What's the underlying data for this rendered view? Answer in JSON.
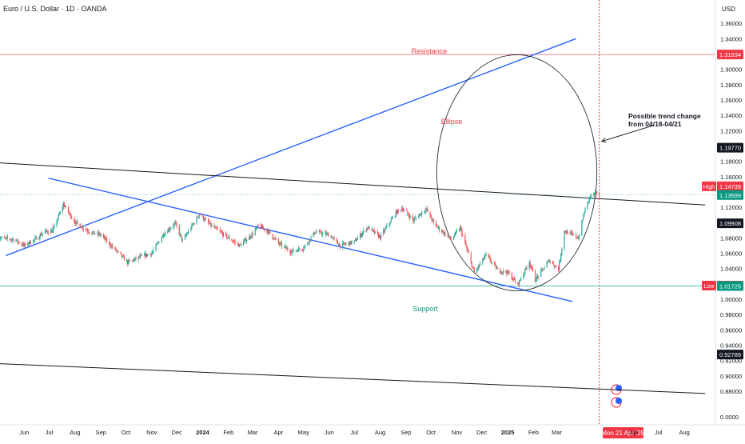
{
  "header": {
    "title": "Euro / U.S. Dollar · 1D · OANDA",
    "currency": "USD"
  },
  "chart_data": {
    "type": "candlestick",
    "symbol": "EURUSD",
    "exchange": "OANDA",
    "interval": "1D",
    "ylim": [
      0.87,
      1.38
    ],
    "grid": false,
    "price_ticks": [
      "1.36000",
      "1.34000",
      "1.32000",
      "1.30000",
      "1.28000",
      "1.26000",
      "1.24000",
      "1.22000",
      "1.20000",
      "1.18000",
      "1.16000",
      "1.14000",
      "1.12000",
      "1.10000",
      "1.08000",
      "1.06000",
      "1.04000",
      "1.02000",
      "1.00000",
      "0.98000",
      "0.96000",
      "0.94000",
      "0.92000",
      "0.90000",
      "0.88000",
      "0.0000"
    ],
    "time_ticks": [
      {
        "label": "Jun",
        "date": "2023-06-01",
        "bold": false
      },
      {
        "label": "Jul",
        "date": "2023-07-01",
        "bold": false
      },
      {
        "label": "Aug",
        "date": "2023-08-01",
        "bold": false
      },
      {
        "label": "Sep",
        "date": "2023-09-01",
        "bold": false
      },
      {
        "label": "Oct",
        "date": "2023-10-01",
        "bold": false
      },
      {
        "label": "Nov",
        "date": "2023-11-01",
        "bold": false
      },
      {
        "label": "Dec",
        "date": "2023-12-01",
        "bold": false
      },
      {
        "label": "2024",
        "date": "2024-01-01",
        "bold": true
      },
      {
        "label": "Feb",
        "date": "2024-02-01",
        "bold": false
      },
      {
        "label": "Mar",
        "date": "2024-03-01",
        "bold": false
      },
      {
        "label": "Apr",
        "date": "2024-04-01",
        "bold": false
      },
      {
        "label": "May",
        "date": "2024-05-01",
        "bold": false
      },
      {
        "label": "Jun",
        "date": "2024-06-01",
        "bold": false
      },
      {
        "label": "Jul",
        "date": "2024-07-01",
        "bold": false
      },
      {
        "label": "Aug",
        "date": "2024-08-01",
        "bold": false
      },
      {
        "label": "Sep",
        "date": "2024-09-01",
        "bold": false
      },
      {
        "label": "Oct",
        "date": "2024-10-01",
        "bold": false
      },
      {
        "label": "Nov",
        "date": "2024-11-01",
        "bold": false
      },
      {
        "label": "Dec",
        "date": "2024-12-01",
        "bold": false
      },
      {
        "label": "2025",
        "date": "2025-01-01",
        "bold": true
      },
      {
        "label": "Feb",
        "date": "2025-02-01",
        "bold": false
      },
      {
        "label": "Mar",
        "date": "2025-03-01",
        "bold": false
      },
      {
        "label": "Jun",
        "date": "2025-06-01",
        "bold": false
      },
      {
        "label": "Jul",
        "date": "2025-07-01",
        "bold": false
      },
      {
        "label": "Aug",
        "date": "2025-08-01",
        "bold": false
      }
    ],
    "price_path": [
      [
        "2023-05-01",
        1.08
      ],
      [
        "2023-05-20",
        1.078
      ],
      [
        "2023-06-01",
        1.07
      ],
      [
        "2023-06-15",
        1.079
      ],
      [
        "2023-06-25",
        1.088
      ],
      [
        "2023-07-05",
        1.089
      ],
      [
        "2023-07-18",
        1.124
      ],
      [
        "2023-08-01",
        1.1
      ],
      [
        "2023-08-20",
        1.087
      ],
      [
        "2023-09-01",
        1.084
      ],
      [
        "2023-09-15",
        1.068
      ],
      [
        "2023-10-03",
        1.048
      ],
      [
        "2023-10-20",
        1.056
      ],
      [
        "2023-11-01",
        1.06
      ],
      [
        "2023-11-15",
        1.085
      ],
      [
        "2023-11-29",
        1.099
      ],
      [
        "2023-12-08",
        1.076
      ],
      [
        "2023-12-28",
        1.111
      ],
      [
        "2024-01-10",
        1.097
      ],
      [
        "2024-02-01",
        1.08
      ],
      [
        "2024-02-14",
        1.07
      ],
      [
        "2024-03-01",
        1.085
      ],
      [
        "2024-03-08",
        1.096
      ],
      [
        "2024-03-20",
        1.088
      ],
      [
        "2024-04-01",
        1.073
      ],
      [
        "2024-04-16",
        1.062
      ],
      [
        "2024-05-01",
        1.067
      ],
      [
        "2024-05-15",
        1.088
      ],
      [
        "2024-06-01",
        1.084
      ],
      [
        "2024-06-14",
        1.07
      ],
      [
        "2024-07-01",
        1.075
      ],
      [
        "2024-07-17",
        1.094
      ],
      [
        "2024-08-01",
        1.081
      ],
      [
        "2024-08-20",
        1.113
      ],
      [
        "2024-08-27",
        1.119
      ],
      [
        "2024-09-10",
        1.103
      ],
      [
        "2024-09-25",
        1.118
      ],
      [
        "2024-10-05",
        1.098
      ],
      [
        "2024-10-25",
        1.078
      ],
      [
        "2024-11-05",
        1.093
      ],
      [
        "2024-11-22",
        1.034
      ],
      [
        "2024-12-06",
        1.058
      ],
      [
        "2024-12-20",
        1.038
      ],
      [
        "2025-01-01",
        1.035
      ],
      [
        "2025-01-13",
        1.019
      ],
      [
        "2025-01-27",
        1.049
      ],
      [
        "2025-02-03",
        1.025
      ],
      [
        "2025-02-20",
        1.051
      ],
      [
        "2025-03-03",
        1.039
      ],
      [
        "2025-03-10",
        1.089
      ],
      [
        "2025-03-27",
        1.08
      ],
      [
        "2025-04-03",
        1.114
      ],
      [
        "2025-04-10",
        1.135
      ],
      [
        "2025-04-18",
        1.139
      ],
      [
        "2025-04-21",
        1.1474
      ]
    ],
    "last_price": 1.13599,
    "session_high": 1.14739,
    "session_low": 1.01779,
    "price_labels": [
      {
        "id": "resistance",
        "value": 1.31934,
        "text": "1.31934",
        "style": "red-box"
      },
      {
        "id": "black1",
        "value": 1.1977,
        "text": "1.19770",
        "style": "black-box"
      },
      {
        "id": "high",
        "value": 1.14739,
        "text": "1.14739",
        "tag": "High",
        "style": "red-box"
      },
      {
        "id": "last",
        "value": 1.13599,
        "text": "1.13599",
        "style": "green-box"
      },
      {
        "id": "black2",
        "value": 1.09908,
        "text": "1.09908",
        "style": "black-box"
      },
      {
        "id": "low",
        "value": 1.01779,
        "text": "1.01779",
        "tag": "Low",
        "style": "red-box"
      },
      {
        "id": "support",
        "value": 1.01725,
        "text": "1.01725",
        "style": "green-box"
      },
      {
        "id": "black3",
        "value": 0.92789,
        "text": "0.92789",
        "style": "black-box"
      }
    ],
    "annotations": {
      "resistance_label": "Resistance",
      "support_label": "Support",
      "ellipse_label": "Ellipse",
      "note_line1": "Possible trend change",
      "note_line2": "from 04/18-04/21",
      "date_marker": "Mon 21 Apr '25"
    },
    "levels": {
      "resistance": 1.31934,
      "support": 1.01725
    },
    "trendlines": [
      {
        "id": "rising",
        "color": "#2962ff",
        "from": [
          "2023-05-10",
          1.057
        ],
        "to": [
          "2025-03-24",
          1.34
        ]
      },
      {
        "id": "falling",
        "color": "#2962ff",
        "from": [
          "2023-06-30",
          1.158
        ],
        "to": [
          "2025-03-20",
          0.997
        ]
      },
      {
        "id": "upper-black",
        "color": "#131722",
        "from": [
          "2023-05-01",
          1.178
        ],
        "to": [
          "2025-08-26",
          1.123
        ]
      },
      {
        "id": "lower-black",
        "color": "#131722",
        "from": [
          "2023-05-01",
          0.916
        ],
        "to": [
          "2025-08-26",
          0.877
        ]
      }
    ],
    "ellipse": {
      "cx_date": "2025-01-12",
      "cy": 1.165,
      "rx_days": 96,
      "ry": 0.154
    },
    "arrow": {
      "from": [
        "2025-04-29",
        1.227
      ],
      "to": [
        "2025-04-21",
        1.206
      ]
    },
    "colors": {
      "up": "#26a69a",
      "down": "#ef5350",
      "blue": "#2962ff",
      "resistance": "#f23645",
      "support": "#089981",
      "marker": "#f23645"
    }
  }
}
